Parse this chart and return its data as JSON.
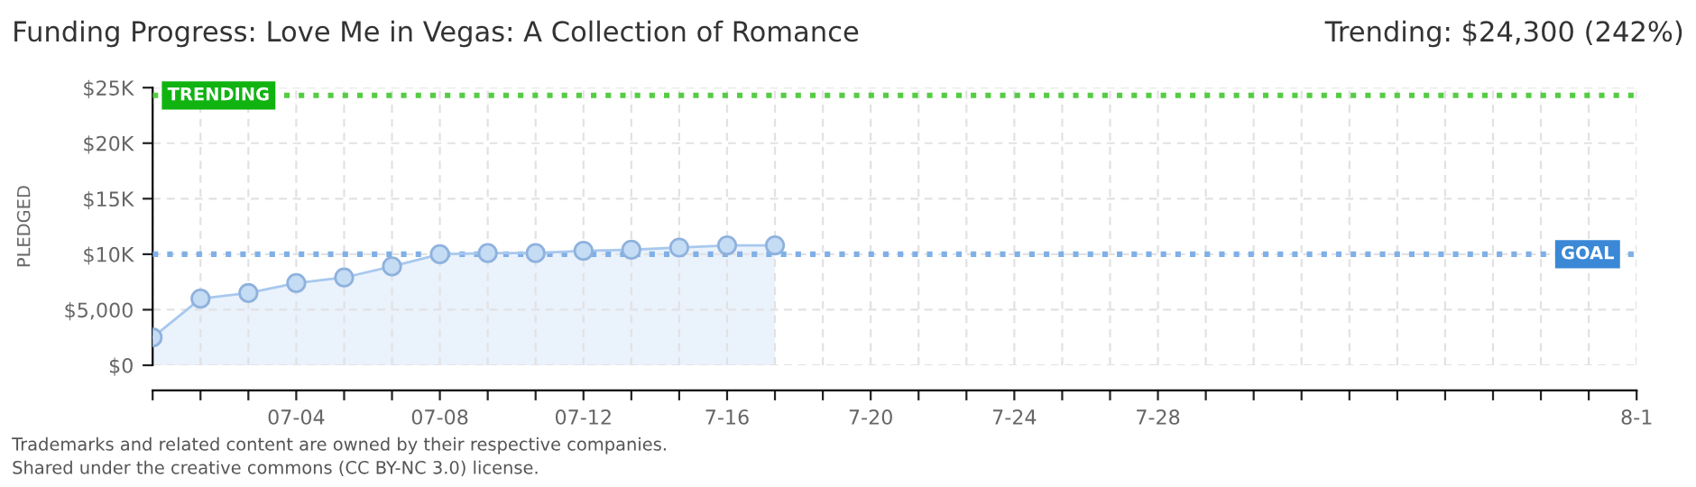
{
  "chart_data": {
    "type": "area",
    "title": "Funding Progress: Love Me in Vegas: A Collection of Romance",
    "ylabel": "PLEDGED",
    "annotations": [
      "Trending: $24,300 (242%)",
      "Trademarks and related content are owned by their respective companies.",
      "Shared under the creative commons (CC BY-NC 3.0) license."
    ],
    "categories": [
      null,
      null,
      null,
      "07-04",
      null,
      null,
      "07-08",
      null,
      null,
      "07-12",
      null,
      null,
      "7-16",
      null,
      null,
      "7-20",
      null,
      null,
      "7-24",
      null,
      null,
      "7-28",
      null,
      null,
      null,
      null,
      null,
      null,
      null,
      null,
      null,
      "8-1"
    ],
    "series": [
      {
        "color": "#a8c8ee",
        "values": [
          2500,
          6000,
          6500,
          7400,
          7900,
          8900,
          10000,
          10100,
          10100,
          10300,
          10400,
          10600,
          10800,
          10800,
          null,
          null,
          null,
          null,
          null,
          null,
          null,
          null,
          null,
          null,
          null,
          null,
          null,
          null,
          null,
          null,
          null,
          null
        ]
      }
    ],
    "marker": "circle",
    "grid": true,
    "ylim": [
      0,
      25000
    ],
    "yticks": [
      {
        "value": 0,
        "label": "$0"
      },
      {
        "value": 5000,
        "label": "$5,000"
      },
      {
        "value": 10000,
        "label": "$10K"
      },
      {
        "value": 15000,
        "label": "$15K"
      },
      {
        "value": 20000,
        "label": "$20K"
      },
      {
        "value": 25000,
        "label": "$25K"
      }
    ],
    "ref_lines": [
      {
        "axis": "y",
        "value": 24300,
        "label": "TRENDING",
        "color": "#55cc44",
        "line_style": "dotted"
      },
      {
        "axis": "y",
        "value": 10000,
        "label": "GOAL",
        "color": "#7fb0e8",
        "line_style": "dotted"
      }
    ]
  }
}
